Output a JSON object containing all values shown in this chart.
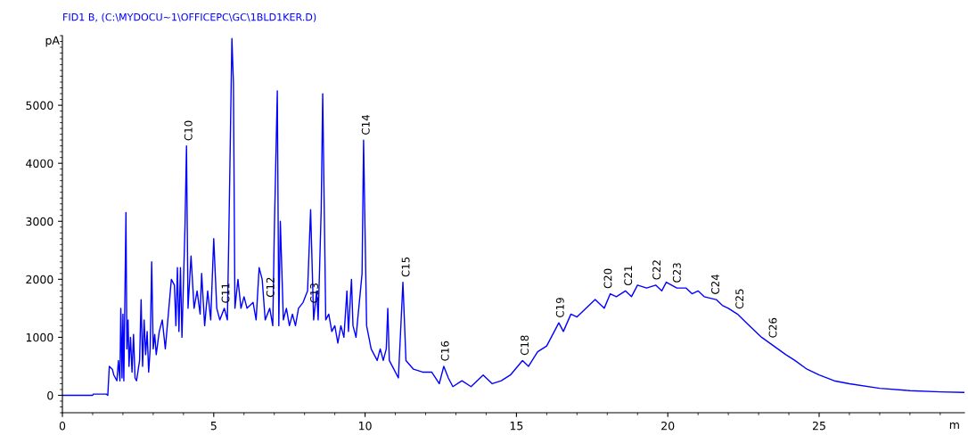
{
  "chart_data": {
    "type": "line",
    "title": "FID1 B, (C:\\MYDOCU~1\\OFFICEPC\\GC\\1BLD1KER.D)",
    "ylabel": "pA",
    "xlabel": "m",
    "xlim": [
      0,
      29.8
    ],
    "xticks": [
      0,
      5,
      10,
      15,
      20,
      25
    ],
    "ylim": [
      -300,
      6200
    ],
    "yticks": [
      0,
      1000,
      2000,
      3000,
      4000,
      5000
    ],
    "grid": false,
    "legend": false,
    "marker": "none",
    "line_style": "solid",
    "series": [
      {
        "color": "#0000ff",
        "x": [
          0,
          1.0,
          1.02,
          1.45,
          1.5,
          1.55,
          1.65,
          1.7,
          1.8,
          1.85,
          1.9,
          1.93,
          1.97,
          2.0,
          2.03,
          2.07,
          2.1,
          2.13,
          2.17,
          2.2,
          2.25,
          2.3,
          2.35,
          2.4,
          2.45,
          2.55,
          2.6,
          2.65,
          2.7,
          2.75,
          2.8,
          2.85,
          2.9,
          2.95,
          3.0,
          3.05,
          3.1,
          3.2,
          3.3,
          3.4,
          3.5,
          3.6,
          3.7,
          3.75,
          3.8,
          3.85,
          3.9,
          3.95,
          4.05,
          4.1,
          4.15,
          4.25,
          4.35,
          4.45,
          4.55,
          4.6,
          4.7,
          4.8,
          4.9,
          5.0,
          5.1,
          5.2,
          5.35,
          5.45,
          5.5,
          5.6,
          5.65,
          5.7,
          5.8,
          5.9,
          6.0,
          6.1,
          6.3,
          6.4,
          6.5,
          6.6,
          6.7,
          6.85,
          6.95,
          7.0,
          7.1,
          7.15,
          7.2,
          7.3,
          7.4,
          7.5,
          7.6,
          7.7,
          7.8,
          7.95,
          8.1,
          8.2,
          8.3,
          8.4,
          8.45,
          8.55,
          8.6,
          8.7,
          8.8,
          8.9,
          9.0,
          9.1,
          9.2,
          9.3,
          9.4,
          9.45,
          9.55,
          9.6,
          9.7,
          9.9,
          9.95,
          10.05,
          10.2,
          10.4,
          10.5,
          10.6,
          10.7,
          10.75,
          10.8,
          10.95,
          11.1,
          11.25,
          11.35,
          11.6,
          11.9,
          12.2,
          12.45,
          12.6,
          12.75,
          12.9,
          13.2,
          13.5,
          13.9,
          14.2,
          14.5,
          14.8,
          15.2,
          15.4,
          15.7,
          16.0,
          16.4,
          16.55,
          16.8,
          17.0,
          17.3,
          17.6,
          17.9,
          18.1,
          18.3,
          18.6,
          18.8,
          19.0,
          19.3,
          19.6,
          19.8,
          19.95,
          20.3,
          20.6,
          20.8,
          21.0,
          21.2,
          21.6,
          21.8,
          22.0,
          22.3,
          22.6,
          22.8,
          23.1,
          23.5,
          23.9,
          24.2,
          24.6,
          25.0,
          25.5,
          26.0,
          27.0,
          28.0,
          29.0,
          29.8
        ],
        "values": [
          0,
          0,
          20,
          20,
          0,
          500,
          450,
          350,
          250,
          600,
          250,
          1500,
          300,
          1400,
          250,
          1900,
          3150,
          800,
          1300,
          500,
          1000,
          400,
          1050,
          300,
          250,
          600,
          1650,
          500,
          1300,
          700,
          1100,
          400,
          800,
          2300,
          800,
          1050,
          700,
          1100,
          1300,
          800,
          1400,
          2000,
          1900,
          1200,
          2200,
          1100,
          2200,
          1000,
          2900,
          4300,
          1500,
          2400,
          1500,
          1800,
          1400,
          2100,
          1200,
          1800,
          1300,
          2700,
          1500,
          1300,
          1500,
          1300,
          2800,
          6150,
          5400,
          1500,
          2000,
          1500,
          1700,
          1500,
          1600,
          1300,
          2200,
          2000,
          1300,
          1500,
          1200,
          2800,
          5250,
          1200,
          3000,
          1300,
          1500,
          1200,
          1400,
          1200,
          1500,
          1600,
          1800,
          3200,
          1300,
          1800,
          1300,
          3200,
          5200,
          1300,
          1400,
          1100,
          1200,
          900,
          1200,
          1000,
          1800,
          1100,
          2000,
          1200,
          1000,
          2100,
          4400,
          1200,
          800,
          600,
          800,
          600,
          800,
          1500,
          600,
          450,
          300,
          1950,
          600,
          450,
          400,
          400,
          200,
          500,
          300,
          150,
          250,
          150,
          350,
          200,
          250,
          350,
          600,
          500,
          750,
          850,
          1250,
          1100,
          1400,
          1350,
          1500,
          1650,
          1500,
          1750,
          1700,
          1800,
          1700,
          1900,
          1850,
          1900,
          1800,
          1950,
          1850,
          1850,
          1750,
          1800,
          1700,
          1650,
          1550,
          1500,
          1400,
          1250,
          1150,
          1000,
          850,
          700,
          600,
          450,
          350,
          250,
          200,
          120,
          80,
          60,
          50
        ]
      }
    ],
    "annotations": [
      {
        "text": "C10",
        "x": 4.19,
        "y": 4300
      },
      {
        "text": "C11",
        "x": 5.42,
        "y": 1500
      },
      {
        "text": "C12",
        "x": 6.9,
        "y": 1600
      },
      {
        "text": "C13",
        "x": 8.35,
        "y": 1500
      },
      {
        "text": "C14",
        "x": 10.05,
        "y": 4400
      },
      {
        "text": "C15",
        "x": 11.37,
        "y": 1950
      },
      {
        "text": "C16",
        "x": 12.67,
        "y": 500
      },
      {
        "text": "C18",
        "x": 15.3,
        "y": 600
      },
      {
        "text": "C19",
        "x": 16.47,
        "y": 1250
      },
      {
        "text": "C20",
        "x": 18.05,
        "y": 1750
      },
      {
        "text": "C21",
        "x": 18.72,
        "y": 1800
      },
      {
        "text": "C22",
        "x": 19.66,
        "y": 1900
      },
      {
        "text": "C23",
        "x": 20.33,
        "y": 1850
      },
      {
        "text": "C24",
        "x": 21.6,
        "y": 1650
      },
      {
        "text": "C25",
        "x": 22.4,
        "y": 1400
      },
      {
        "text": "C26",
        "x": 23.5,
        "y": 900
      }
    ]
  }
}
